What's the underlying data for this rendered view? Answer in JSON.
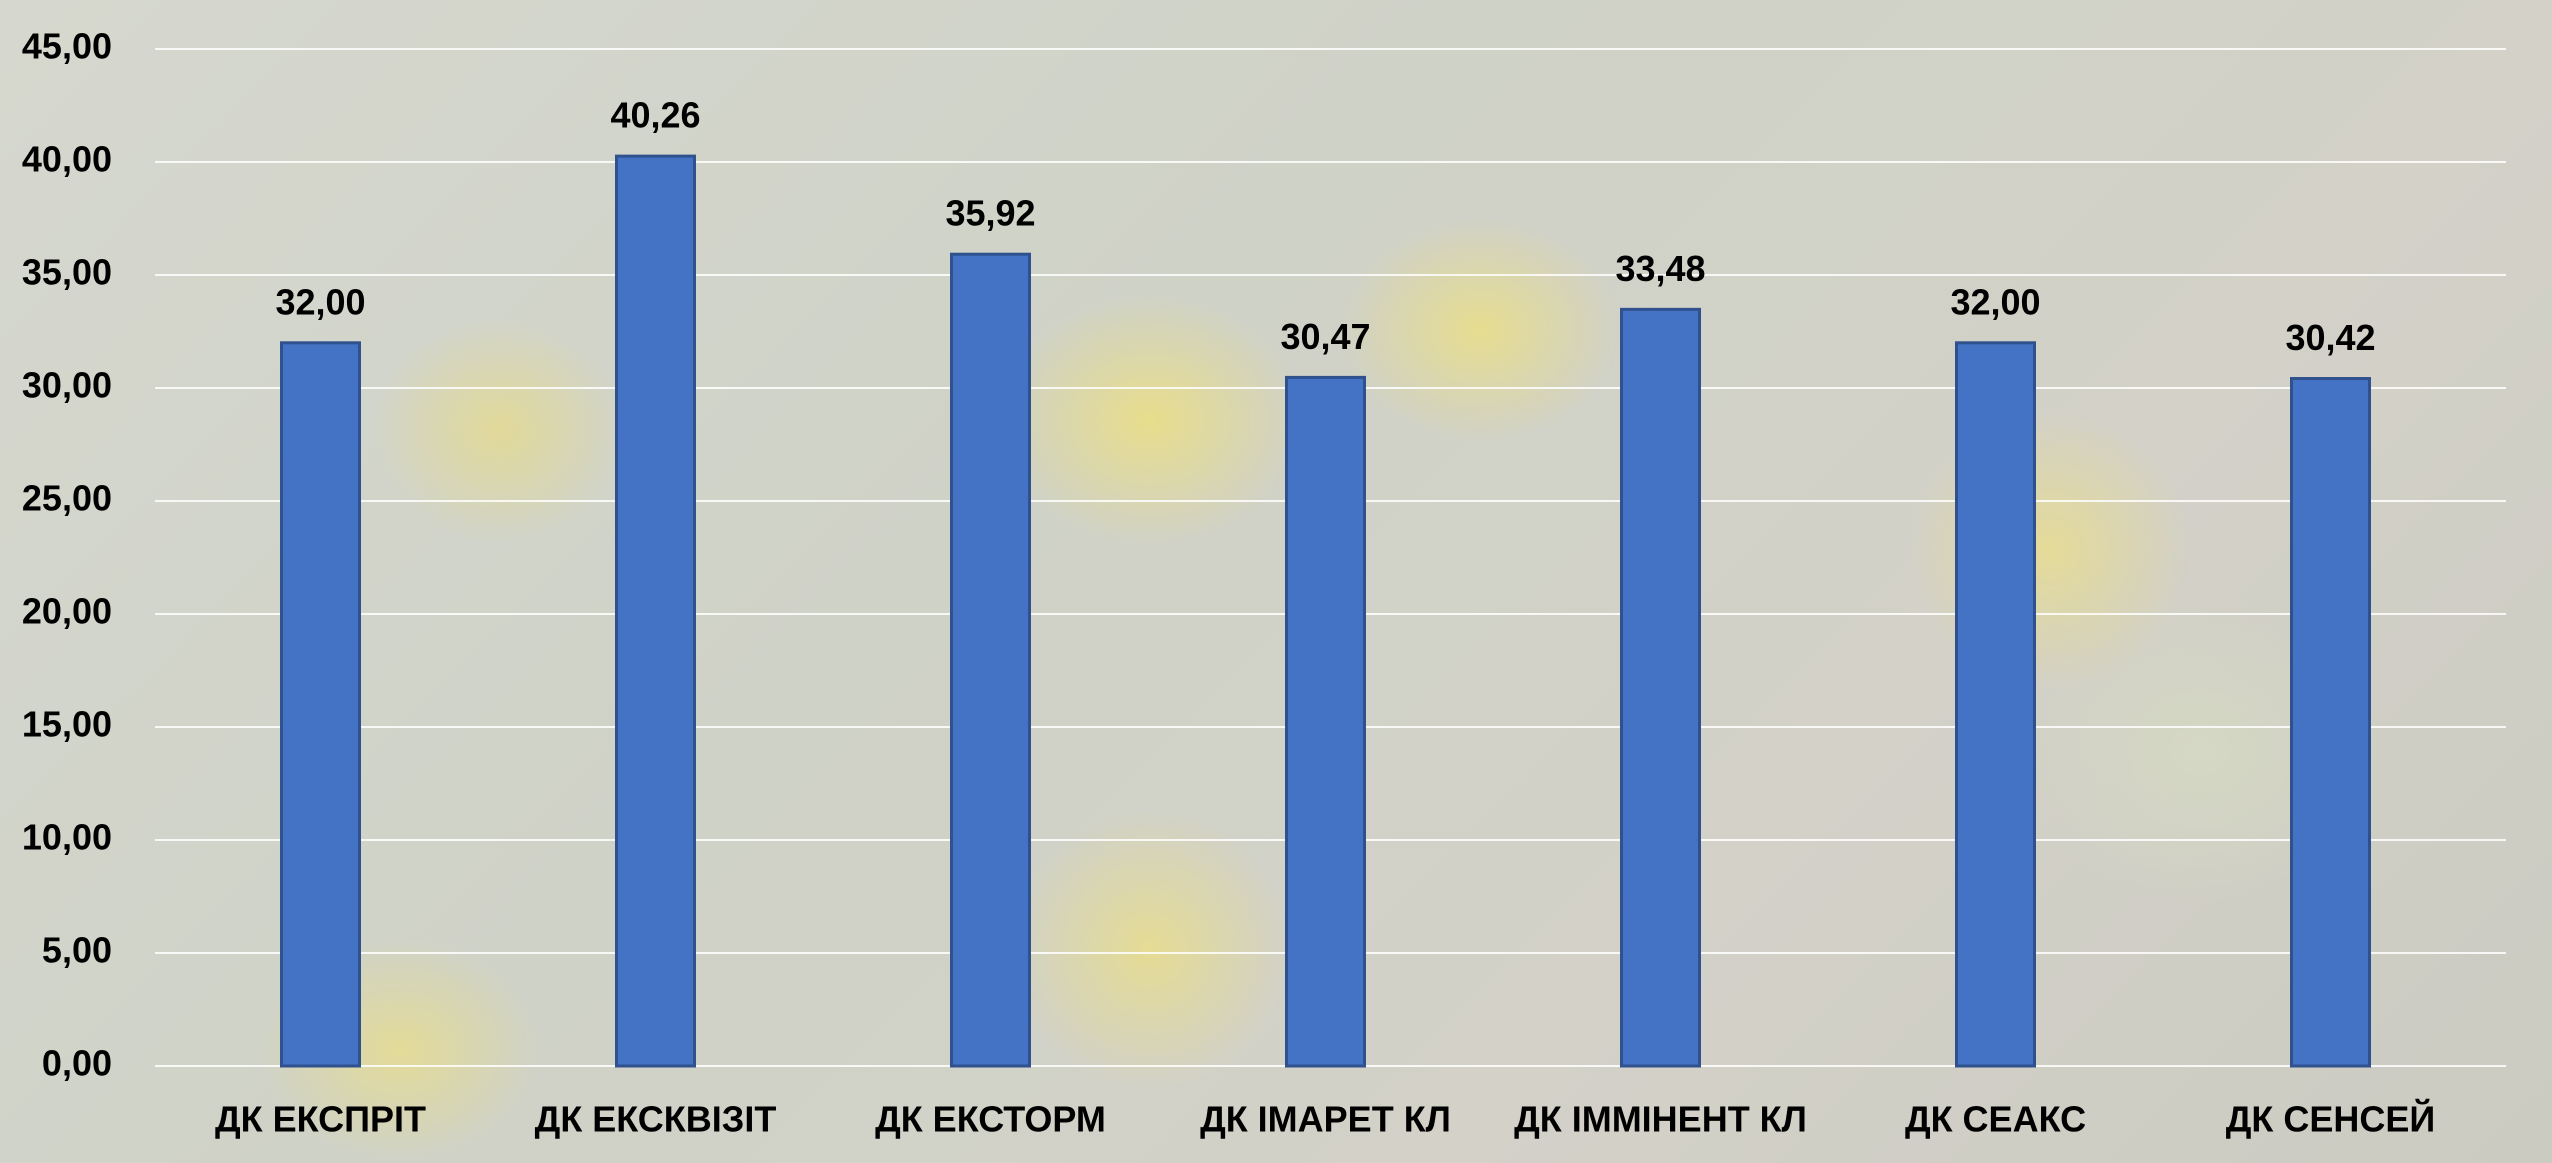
{
  "chart_data": {
    "type": "bar",
    "categories": [
      "ДК ЕКСПРІТ",
      "ДК ЕКСКВІЗІТ",
      "ДК ЕКСТОРМ",
      "ДК ІМАРЕТ КЛ",
      "ДК ІММІНЕНТ КЛ",
      "ДК СЕАКС",
      "ДК СЕНСЕЙ"
    ],
    "values": [
      32.0,
      40.26,
      35.92,
      30.47,
      33.48,
      32.0,
      30.42
    ],
    "value_labels": [
      "32,00",
      "40,26",
      "35,92",
      "30,47",
      "33,48",
      "32,00",
      "30,42"
    ],
    "color": "#4472c4",
    "ylim": [
      0,
      45
    ],
    "yticks": [
      {
        "value": 0,
        "label": "0,00"
      },
      {
        "value": 5,
        "label": "5,00"
      },
      {
        "value": 10,
        "label": "10,00"
      },
      {
        "value": 15,
        "label": "15,00"
      },
      {
        "value": 20,
        "label": "20,00"
      },
      {
        "value": 25,
        "label": "25,00"
      },
      {
        "value": 30,
        "label": "30,00"
      },
      {
        "value": 35,
        "label": "35,00"
      },
      {
        "value": 40,
        "label": "40,00"
      },
      {
        "value": 45,
        "label": "45,00"
      }
    ],
    "grid": true
  }
}
